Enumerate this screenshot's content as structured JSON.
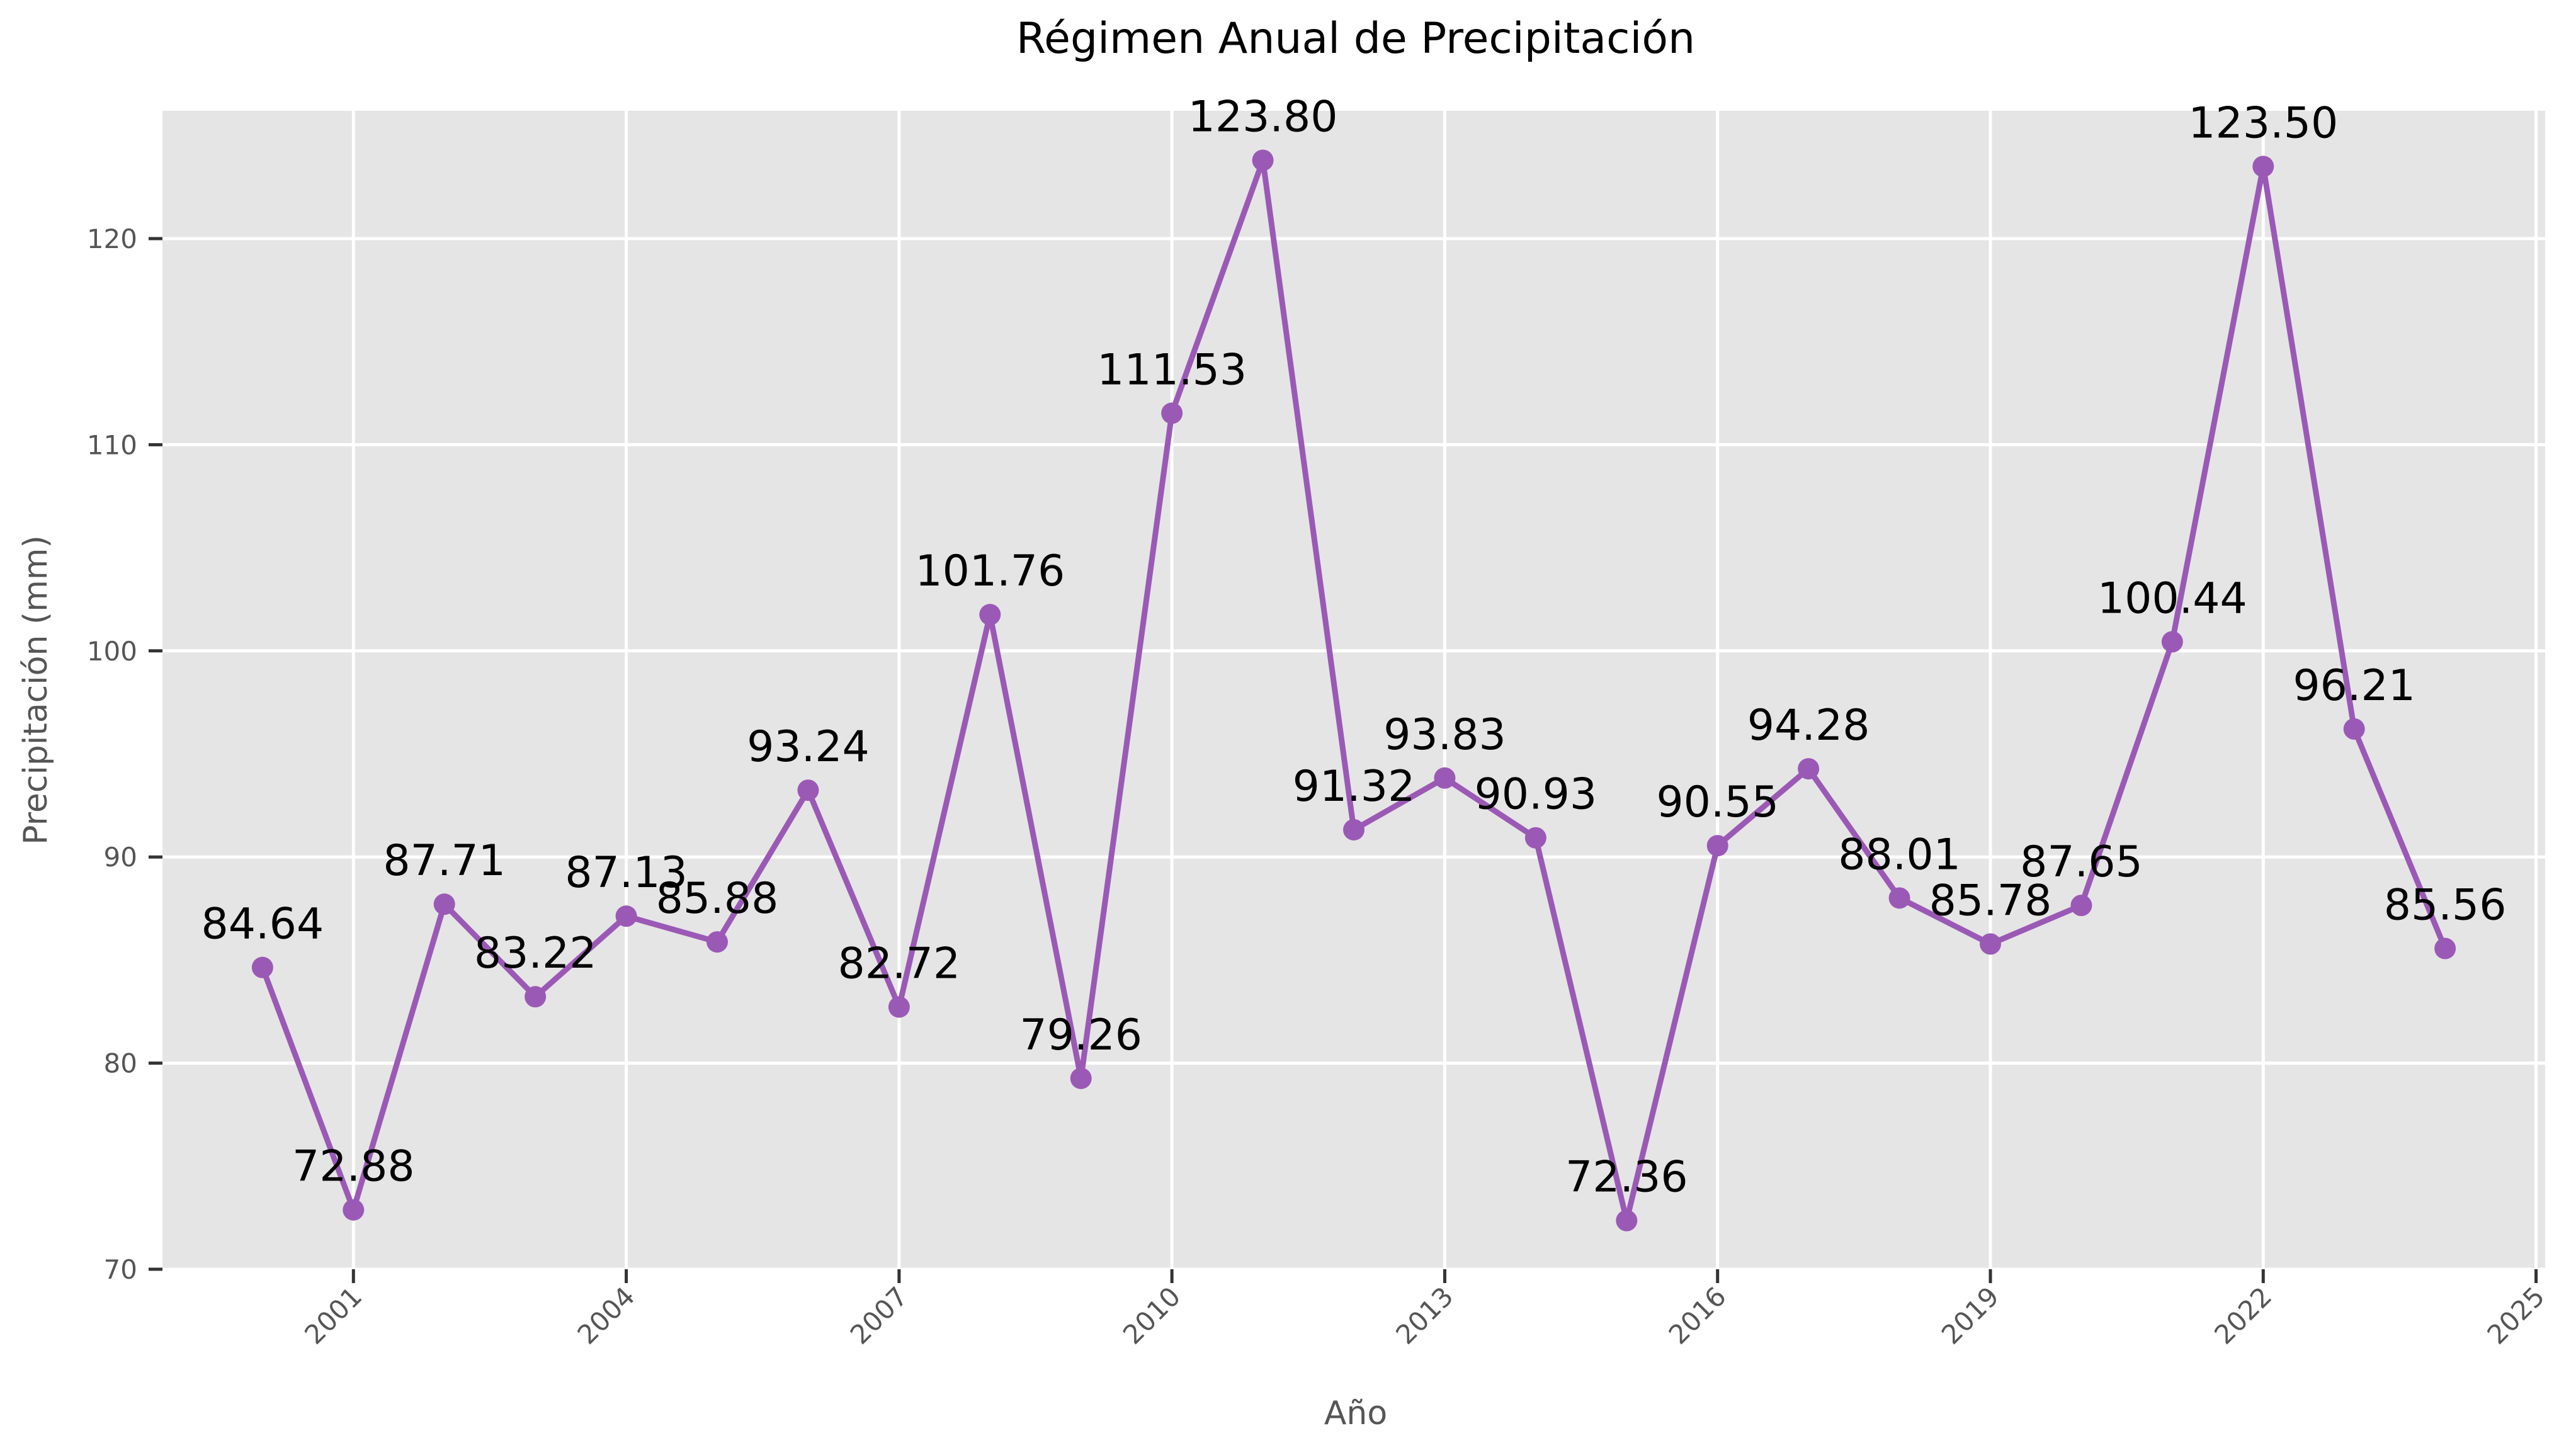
{
  "chart_data": {
    "type": "line",
    "title": "Régimen Anual de Precipitación",
    "xlabel": "Año",
    "ylabel": "Precipitación (mm)",
    "x": [
      2000,
      2001,
      2002,
      2003,
      2004,
      2005,
      2006,
      2007,
      2008,
      2009,
      2010,
      2011,
      2012,
      2013,
      2014,
      2015,
      2016,
      2017,
      2018,
      2019,
      2020,
      2021,
      2022,
      2023,
      2024
    ],
    "series": [
      {
        "color": "#9b59b6",
        "values": [
          84.64,
          72.88,
          87.71,
          83.22,
          87.13,
          85.88,
          93.24,
          82.72,
          101.76,
          79.26,
          111.53,
          123.8,
          91.32,
          93.83,
          90.93,
          72.36,
          90.55,
          94.28,
          88.01,
          85.78,
          87.65,
          100.44,
          123.5,
          96.21,
          85.56
        ]
      }
    ],
    "data_labels": [
      "84.64",
      "72.88",
      "87.71",
      "83.22",
      "87.13",
      "85.88",
      "93.24",
      "82.72",
      "101.76",
      "79.26",
      "111.53",
      "123.80",
      "91.32",
      "93.83",
      "90.93",
      "72.36",
      "90.55",
      "94.28",
      "88.01",
      "85.78",
      "87.65",
      "100.44",
      "123.50",
      "96.21",
      "85.56"
    ],
    "xticks": [
      "2001",
      "2004",
      "2007",
      "2010",
      "2013",
      "2016",
      "2019",
      "2022",
      "2025"
    ],
    "yticks": [
      "70",
      "80",
      "90",
      "100",
      "110",
      "120"
    ],
    "xlim": [
      1998.9,
      2025.1
    ],
    "ylim": [
      70,
      126.2
    ],
    "grid": true,
    "background": "#e5e5e5",
    "line_color": "#9b59b6"
  }
}
